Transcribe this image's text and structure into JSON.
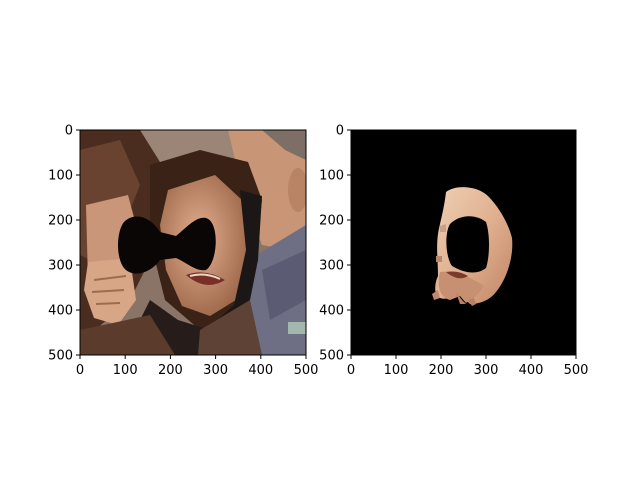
{
  "figure": {
    "background": "#ffffff",
    "panels": [
      {
        "id": "photo-panel",
        "content": "photograph of a crying woman in a crowd with a black bow-tie-shaped occlusion mask over the eyes",
        "xlim": [
          0,
          500
        ],
        "ylim": [
          500,
          0
        ],
        "xticks": [
          "0",
          "100",
          "200",
          "300",
          "400",
          "500"
        ],
        "yticks": [
          "0",
          "100",
          "200",
          "300",
          "400",
          "500"
        ]
      },
      {
        "id": "mask-panel",
        "content": "segmented face region (skin) on a black background, with the eye occlusion cut out",
        "xlim": [
          0,
          500
        ],
        "ylim": [
          500,
          0
        ],
        "xticks": [
          "0",
          "100",
          "200",
          "300",
          "400",
          "500"
        ],
        "yticks": [
          "0",
          "100",
          "200",
          "300",
          "400",
          "500"
        ]
      }
    ],
    "colors": {
      "axis": "#000000",
      "mask": "#0a0606",
      "skin": "#dba784",
      "hair": "#3b2418",
      "background_black": "#000000"
    }
  }
}
